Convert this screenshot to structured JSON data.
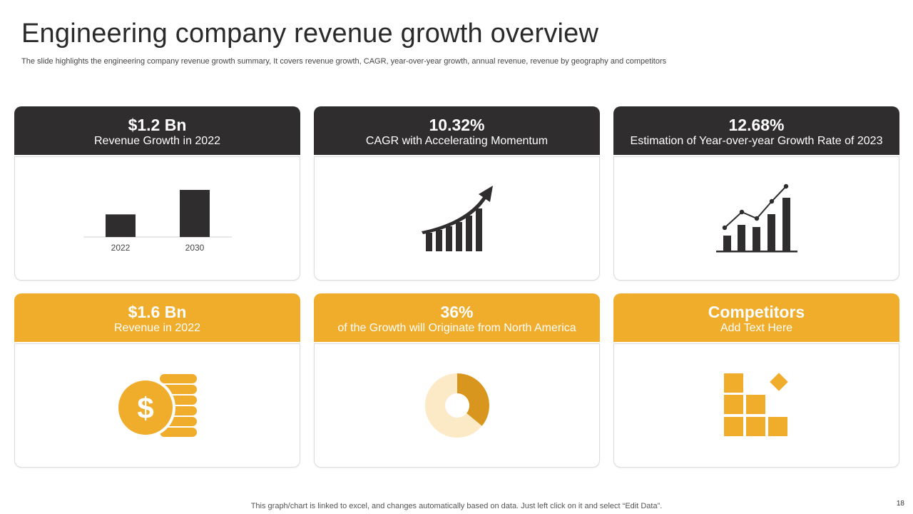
{
  "title": "Engineering company revenue growth overview",
  "subtitle": "The slide highlights the engineering company revenue growth summary, It covers revenue growth, CAGR, year-over-year growth, annual revenue, revenue by geography and competitors",
  "colors": {
    "dark": "#2f2d2e",
    "gold": "#f0ac2b",
    "gold_dark": "#d9961e",
    "gold_light": "#fce9c6"
  },
  "cards": [
    {
      "value": "$1.2 Bn",
      "label": "Revenue  Growth  in 2022"
    },
    {
      "value": "10.32%",
      "label": "CAGR with Accelerating Momentum"
    },
    {
      "value": "12.68%",
      "label": "Estimation of Year-over-year  Growth Rate of 2023"
    },
    {
      "value": "$1.6 Bn",
      "label": "Revenue  in 2022"
    },
    {
      "value": "36%",
      "label": "of the Growth will Originate from North America"
    },
    {
      "value": "Competitors",
      "label": "Add Text Here"
    }
  ],
  "chart_data": {
    "type": "bar",
    "categories": [
      "2022",
      "2030"
    ],
    "values": [
      1.2,
      2.5
    ],
    "title": "",
    "xlabel": "",
    "ylabel": "",
    "ylim": [
      0,
      2.5
    ]
  },
  "donut": {
    "highlight_percent": 36
  },
  "icons": {
    "cagr": "growth-arrow-bars-icon",
    "yoy": "line-over-bars-chart-icon",
    "revenue": "dollar-coins-icon",
    "competitors": "blocks-diamond-icon"
  },
  "footer": "This graph/chart is linked to excel,  and changes automatically based on data. Just left click on it and select “Edit Data”.",
  "page_number": "18"
}
